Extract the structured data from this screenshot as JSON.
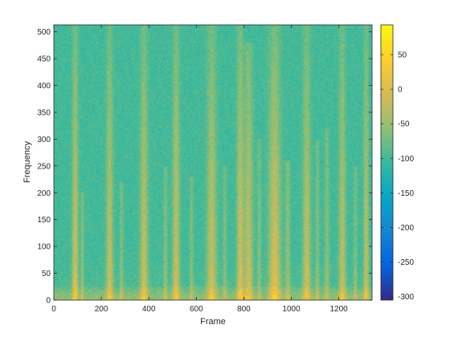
{
  "chart_data": {
    "type": "heatmap",
    "title": "",
    "xlabel": "Frame",
    "ylabel": "Frequency",
    "xlim": [
      0,
      1340
    ],
    "ylim": [
      0,
      513
    ],
    "x_ticks": [
      0,
      200,
      400,
      600,
      800,
      1000,
      1200
    ],
    "x_tick_labels": [
      "0",
      "200",
      "400",
      "600",
      "800",
      "1000",
      "1200"
    ],
    "y_ticks": [
      0,
      50,
      100,
      150,
      200,
      250,
      300,
      350,
      400,
      450,
      500
    ],
    "y_tick_labels": [
      "0",
      "50",
      "100",
      "150",
      "200",
      "250",
      "300",
      "350",
      "400",
      "450",
      "500"
    ],
    "colorbar": {
      "colormap": "parula",
      "clim": [
        -305,
        93
      ],
      "ticks": [
        50,
        0,
        -50,
        -100,
        -150,
        -200,
        -250,
        -300
      ],
      "tick_labels": [
        "50",
        "0",
        "-50",
        "-100",
        "-150",
        "-200",
        "-250",
        "-300"
      ],
      "colors": [
        "#352a87",
        "#0363e1",
        "#1485d4",
        "#06a7c6",
        "#38b99e",
        "#92bf73",
        "#d9ba56",
        "#fcce2e",
        "#f9fb0e"
      ]
    },
    "background_value": -100,
    "bursts": [
      {
        "frame": 90,
        "width": 12,
        "strength": 0.95,
        "max_freq": 513
      },
      {
        "frame": 120,
        "width": 6,
        "strength": 0.5,
        "max_freq": 200
      },
      {
        "frame": 235,
        "width": 14,
        "strength": 0.85,
        "max_freq": 513
      },
      {
        "frame": 285,
        "width": 7,
        "strength": 0.45,
        "max_freq": 220
      },
      {
        "frame": 380,
        "width": 16,
        "strength": 0.85,
        "max_freq": 513
      },
      {
        "frame": 470,
        "width": 8,
        "strength": 0.45,
        "max_freq": 250
      },
      {
        "frame": 515,
        "width": 14,
        "strength": 0.9,
        "max_freq": 513
      },
      {
        "frame": 580,
        "width": 8,
        "strength": 0.4,
        "max_freq": 230
      },
      {
        "frame": 665,
        "width": 20,
        "strength": 0.85,
        "max_freq": 513
      },
      {
        "frame": 720,
        "width": 8,
        "strength": 0.4,
        "max_freq": 250
      },
      {
        "frame": 785,
        "width": 14,
        "strength": 0.95,
        "max_freq": 513
      },
      {
        "frame": 820,
        "width": 18,
        "strength": 0.85,
        "max_freq": 480
      },
      {
        "frame": 865,
        "width": 8,
        "strength": 0.45,
        "max_freq": 300
      },
      {
        "frame": 930,
        "width": 24,
        "strength": 1.0,
        "max_freq": 513
      },
      {
        "frame": 985,
        "width": 10,
        "strength": 0.5,
        "max_freq": 260
      },
      {
        "frame": 1065,
        "width": 16,
        "strength": 0.85,
        "max_freq": 513
      },
      {
        "frame": 1110,
        "width": 8,
        "strength": 0.45,
        "max_freq": 300
      },
      {
        "frame": 1150,
        "width": 10,
        "strength": 0.45,
        "max_freq": 320
      },
      {
        "frame": 1215,
        "width": 14,
        "strength": 0.8,
        "max_freq": 513
      },
      {
        "frame": 1270,
        "width": 8,
        "strength": 0.4,
        "max_freq": 250
      },
      {
        "frame": 1315,
        "width": 10,
        "strength": 0.85,
        "max_freq": 513
      }
    ]
  }
}
